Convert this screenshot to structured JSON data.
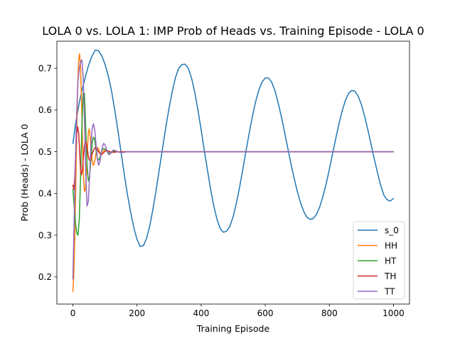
{
  "chart_data": {
    "type": "line",
    "title": "LOLA 0 vs. LOLA 1: IMP Prob of Heads vs. Training Episode - LOLA 0",
    "xlabel": "Training Episode",
    "ylabel": "Prob (Heads) - LOLA 0",
    "xlim": [
      -50,
      1050
    ],
    "ylim": [
      0.135,
      0.765
    ],
    "x_ticks": [
      0,
      200,
      400,
      600,
      800,
      1000
    ],
    "y_ticks": [
      0.2,
      0.3,
      0.4,
      0.5,
      0.6,
      0.7
    ],
    "x_tick_labels": [
      "0",
      "200",
      "400",
      "600",
      "800",
      "1000"
    ],
    "y_tick_labels": [
      "0.2",
      "0.3",
      "0.4",
      "0.5",
      "0.6",
      "0.7"
    ],
    "grid": false,
    "legend_position": "lower-right",
    "series": [
      {
        "name": "s_0",
        "color": "#1f77b4",
        "x": [
          0,
          10,
          20,
          30,
          40,
          50,
          60,
          70,
          80,
          90,
          100,
          110,
          120,
          130,
          140,
          150,
          160,
          170,
          180,
          190,
          200,
          210,
          220,
          230,
          240,
          250,
          260,
          270,
          280,
          290,
          300,
          310,
          320,
          330,
          340,
          350,
          360,
          370,
          380,
          390,
          400,
          410,
          420,
          430,
          440,
          450,
          460,
          470,
          480,
          490,
          500,
          510,
          520,
          530,
          540,
          550,
          560,
          570,
          580,
          590,
          600,
          610,
          620,
          630,
          640,
          650,
          660,
          670,
          680,
          690,
          700,
          710,
          720,
          730,
          740,
          750,
          760,
          770,
          780,
          790,
          800,
          810,
          820,
          830,
          840,
          850,
          860,
          870,
          880,
          890,
          900,
          910,
          920,
          930,
          940,
          950,
          960,
          970,
          980,
          990,
          1000
        ],
        "values": [
          0.52,
          0.575,
          0.618,
          0.653,
          0.683,
          0.71,
          0.73,
          0.744,
          0.742,
          0.73,
          0.71,
          0.683,
          0.648,
          0.603,
          0.553,
          0.5,
          0.447,
          0.398,
          0.356,
          0.318,
          0.29,
          0.273,
          0.275,
          0.293,
          0.323,
          0.364,
          0.41,
          0.46,
          0.51,
          0.56,
          0.605,
          0.645,
          0.678,
          0.7,
          0.709,
          0.71,
          0.7,
          0.677,
          0.643,
          0.6,
          0.553,
          0.503,
          0.455,
          0.408,
          0.368,
          0.337,
          0.315,
          0.307,
          0.31,
          0.322,
          0.345,
          0.377,
          0.415,
          0.458,
          0.502,
          0.545,
          0.585,
          0.62,
          0.648,
          0.667,
          0.677,
          0.677,
          0.667,
          0.647,
          0.618,
          0.585,
          0.548,
          0.51,
          0.472,
          0.437,
          0.405,
          0.378,
          0.357,
          0.343,
          0.338,
          0.34,
          0.35,
          0.368,
          0.393,
          0.423,
          0.458,
          0.495,
          0.532,
          0.567,
          0.598,
          0.623,
          0.64,
          0.647,
          0.645,
          0.633,
          0.613,
          0.585,
          0.553,
          0.518,
          0.483,
          0.45,
          0.42,
          0.396,
          0.385,
          0.382,
          0.388
        ]
      },
      {
        "name": "HH",
        "color": "#ff7f0e",
        "x": [
          0,
          3,
          6,
          9,
          12,
          15,
          18,
          21,
          24,
          27,
          30,
          33,
          36,
          39,
          42,
          45,
          48,
          51,
          54,
          57,
          60,
          63,
          66,
          69,
          72,
          75,
          78,
          81,
          84,
          87,
          90,
          93,
          96,
          99,
          102,
          105,
          108,
          111,
          114,
          117,
          120,
          130,
          140,
          150,
          160,
          175,
          200,
          1000
        ],
        "values": [
          0.165,
          0.21,
          0.3,
          0.42,
          0.55,
          0.66,
          0.72,
          0.735,
          0.7,
          0.62,
          0.52,
          0.44,
          0.405,
          0.41,
          0.445,
          0.5,
          0.545,
          0.555,
          0.535,
          0.505,
          0.48,
          0.468,
          0.47,
          0.482,
          0.497,
          0.507,
          0.51,
          0.505,
          0.497,
          0.493,
          0.493,
          0.497,
          0.502,
          0.505,
          0.505,
          0.503,
          0.5,
          0.498,
          0.497,
          0.498,
          0.5,
          0.501,
          0.5,
          0.499,
          0.5,
          0.5,
          0.5,
          0.5
        ]
      },
      {
        "name": "HT",
        "color": "#2ca02c",
        "x": [
          0,
          4,
          8,
          12,
          16,
          20,
          24,
          28,
          32,
          36,
          40,
          44,
          48,
          52,
          56,
          60,
          64,
          68,
          72,
          76,
          80,
          84,
          88,
          92,
          96,
          100,
          105,
          110,
          115,
          120,
          130,
          140,
          150,
          160,
          180,
          200,
          1000
        ],
        "values": [
          0.41,
          0.37,
          0.33,
          0.305,
          0.3,
          0.34,
          0.44,
          0.56,
          0.64,
          0.64,
          0.56,
          0.47,
          0.43,
          0.44,
          0.48,
          0.52,
          0.535,
          0.53,
          0.505,
          0.485,
          0.48,
          0.485,
          0.497,
          0.505,
          0.508,
          0.506,
          0.502,
          0.498,
          0.497,
          0.499,
          0.502,
          0.5,
          0.499,
          0.5,
          0.5,
          0.5,
          0.5
        ]
      },
      {
        "name": "TH",
        "color": "#d62728",
        "x": [
          0,
          3,
          6,
          9,
          12,
          15,
          18,
          21,
          24,
          27,
          30,
          33,
          36,
          39,
          42,
          45,
          48,
          51,
          54,
          57,
          60,
          65,
          70,
          75,
          80,
          85,
          90,
          95,
          100,
          105,
          110,
          120,
          130,
          140,
          150,
          160,
          180,
          200,
          1000
        ],
        "values": [
          0.42,
          0.41,
          0.44,
          0.5,
          0.545,
          0.56,
          0.545,
          0.5,
          0.455,
          0.445,
          0.46,
          0.49,
          0.515,
          0.525,
          0.52,
          0.505,
          0.49,
          0.48,
          0.48,
          0.487,
          0.495,
          0.505,
          0.51,
          0.507,
          0.5,
          0.495,
          0.494,
          0.497,
          0.501,
          0.503,
          0.502,
          0.499,
          0.499,
          0.5,
          0.5,
          0.5,
          0.5,
          0.5,
          0.5
        ]
      },
      {
        "name": "TT",
        "color": "#9467bd",
        "x": [
          0,
          4,
          8,
          12,
          16,
          20,
          24,
          28,
          32,
          36,
          40,
          44,
          48,
          52,
          56,
          60,
          64,
          68,
          72,
          76,
          80,
          84,
          88,
          92,
          96,
          100,
          104,
          108,
          112,
          116,
          120,
          126,
          132,
          140,
          150,
          160,
          170,
          180,
          200,
          1000
        ],
        "values": [
          0.195,
          0.34,
          0.48,
          0.6,
          0.67,
          0.7,
          0.715,
          0.72,
          0.68,
          0.58,
          0.45,
          0.37,
          0.38,
          0.44,
          0.51,
          0.555,
          0.567,
          0.553,
          0.52,
          0.485,
          0.468,
          0.475,
          0.495,
          0.512,
          0.52,
          0.517,
          0.508,
          0.498,
          0.493,
          0.494,
          0.499,
          0.504,
          0.503,
          0.5,
          0.498,
          0.499,
          0.5,
          0.5,
          0.5,
          0.5
        ]
      }
    ]
  }
}
